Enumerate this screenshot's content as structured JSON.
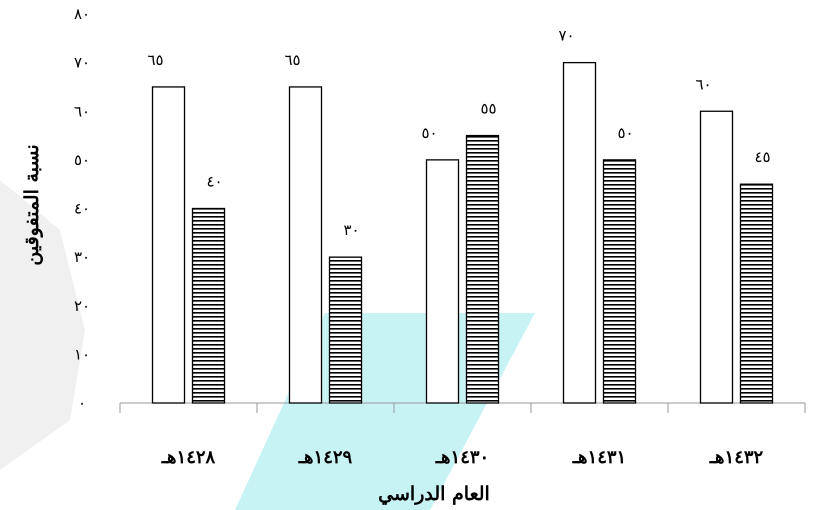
{
  "chart_data": {
    "type": "bar",
    "xlabel": "العام الدراسي",
    "ylabel": "نسبة المتفوقين",
    "ylim": [
      0,
      80
    ],
    "yticks": [
      0,
      10,
      20,
      30,
      40,
      50,
      60,
      70,
      80
    ],
    "ytick_labels": [
      "٠",
      "١٠",
      "٢٠",
      "٣٠",
      "٤٠",
      "٥٠",
      "٦٠",
      "٧٠",
      "٨٠"
    ],
    "categories": [
      "١٤٢٨هـ",
      "١٤٢٩هـ",
      "١٤٣٠هـ",
      "١٤٣١هـ",
      "١٤٣٢هـ"
    ],
    "series": [
      {
        "values": [
          65,
          65,
          50,
          70,
          60
        ],
        "labels": [
          "٦٥",
          "٦٥",
          "٥٠",
          "٧٠",
          "٦٠"
        ],
        "style": "white"
      },
      {
        "values": [
          40,
          30,
          55,
          50,
          45
        ],
        "labels": [
          "٤٠",
          "٣٠",
          "٥٥",
          "٥٠",
          "٤٥"
        ],
        "style": "horizontal-stripes"
      }
    ],
    "grid": false,
    "legend": "none",
    "colors": {
      "bar_fill": "#ffffff",
      "bar_stroke": "#000000",
      "watermark": "#c8f3f5"
    }
  }
}
